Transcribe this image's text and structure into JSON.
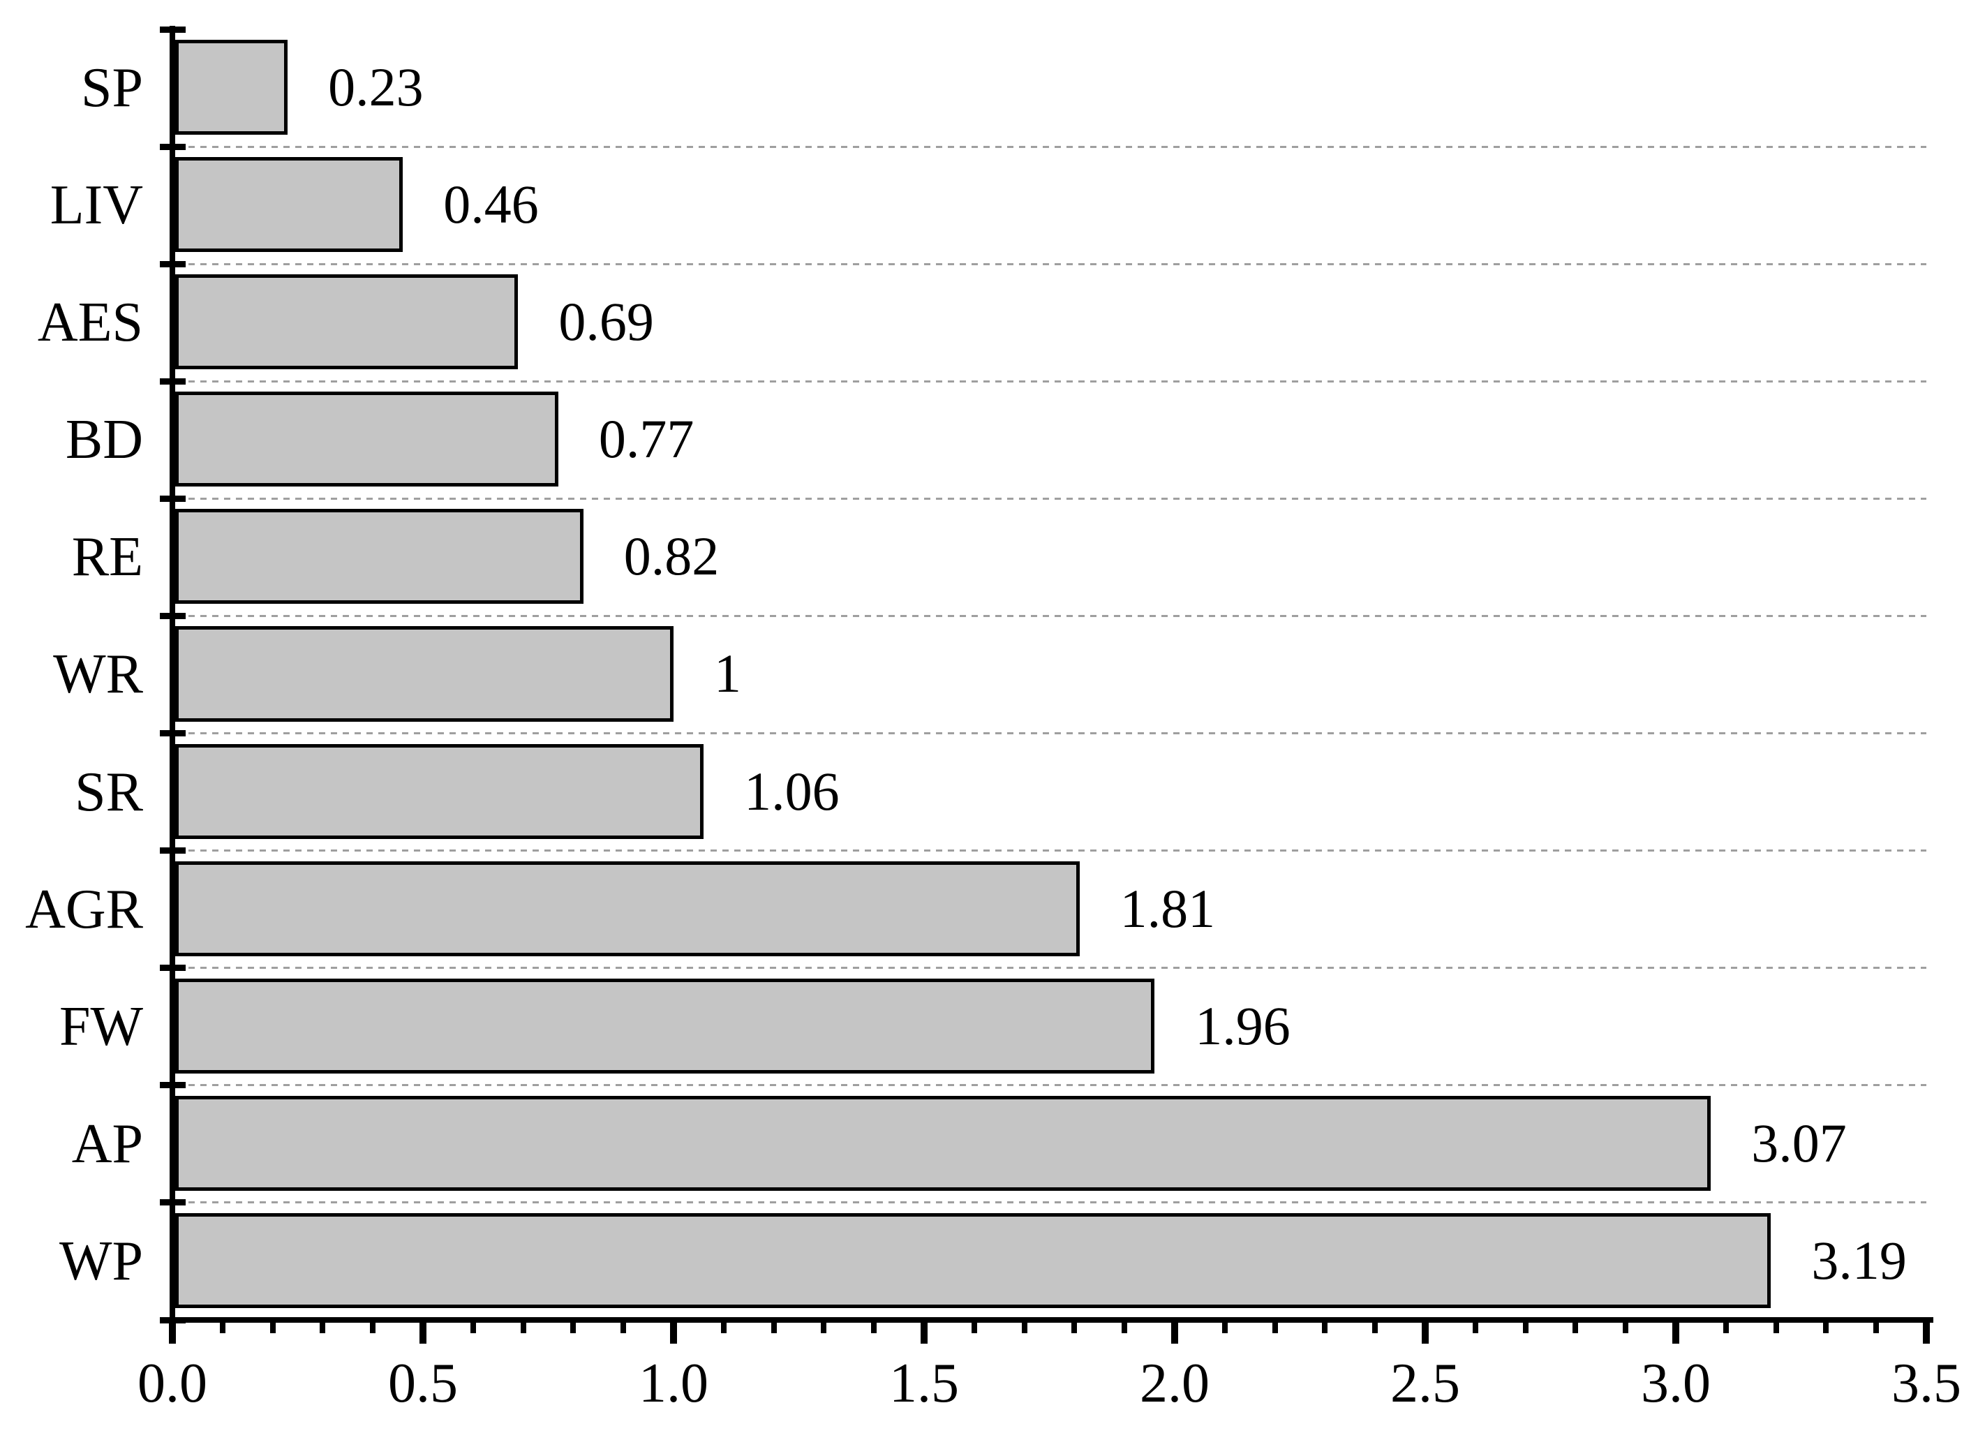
{
  "chart_data": {
    "type": "bar",
    "orientation": "horizontal",
    "title": "",
    "xlabel": "",
    "ylabel": "",
    "categories": [
      "SP",
      "LIV",
      "AES",
      "BD",
      "RE",
      "WR",
      "SR",
      "AGR",
      "FW",
      "AP",
      "WP"
    ],
    "values": [
      0.23,
      0.46,
      0.69,
      0.77,
      0.82,
      1,
      1.06,
      1.81,
      1.96,
      3.07,
      3.19
    ],
    "bar_value_labels": [
      "0.23",
      "0.46",
      "0.69",
      "0.77",
      "0.82",
      "1",
      "1.06",
      "1.81",
      "1.96",
      "3.07",
      "3.19"
    ],
    "xlim": [
      0,
      3.5
    ],
    "x_major_ticks": [
      0,
      0.5,
      1,
      1.5,
      2,
      2.5,
      3,
      3.5
    ],
    "x_major_tick_labels": [
      "0.0",
      "0.5",
      "1.0",
      "1.5",
      "2.0",
      "2.5",
      "3.0",
      "3.5"
    ],
    "x_minor_tick_step": 0.1,
    "grid": "horizontal dashed lines at category boundaries",
    "legend": null,
    "colors": {
      "bar_fill": "#c5c5c5",
      "bar_border": "#000000",
      "axis": "#000000",
      "gridline": "#9f9f9f",
      "text": "#000000",
      "background": "#ffffff"
    }
  }
}
